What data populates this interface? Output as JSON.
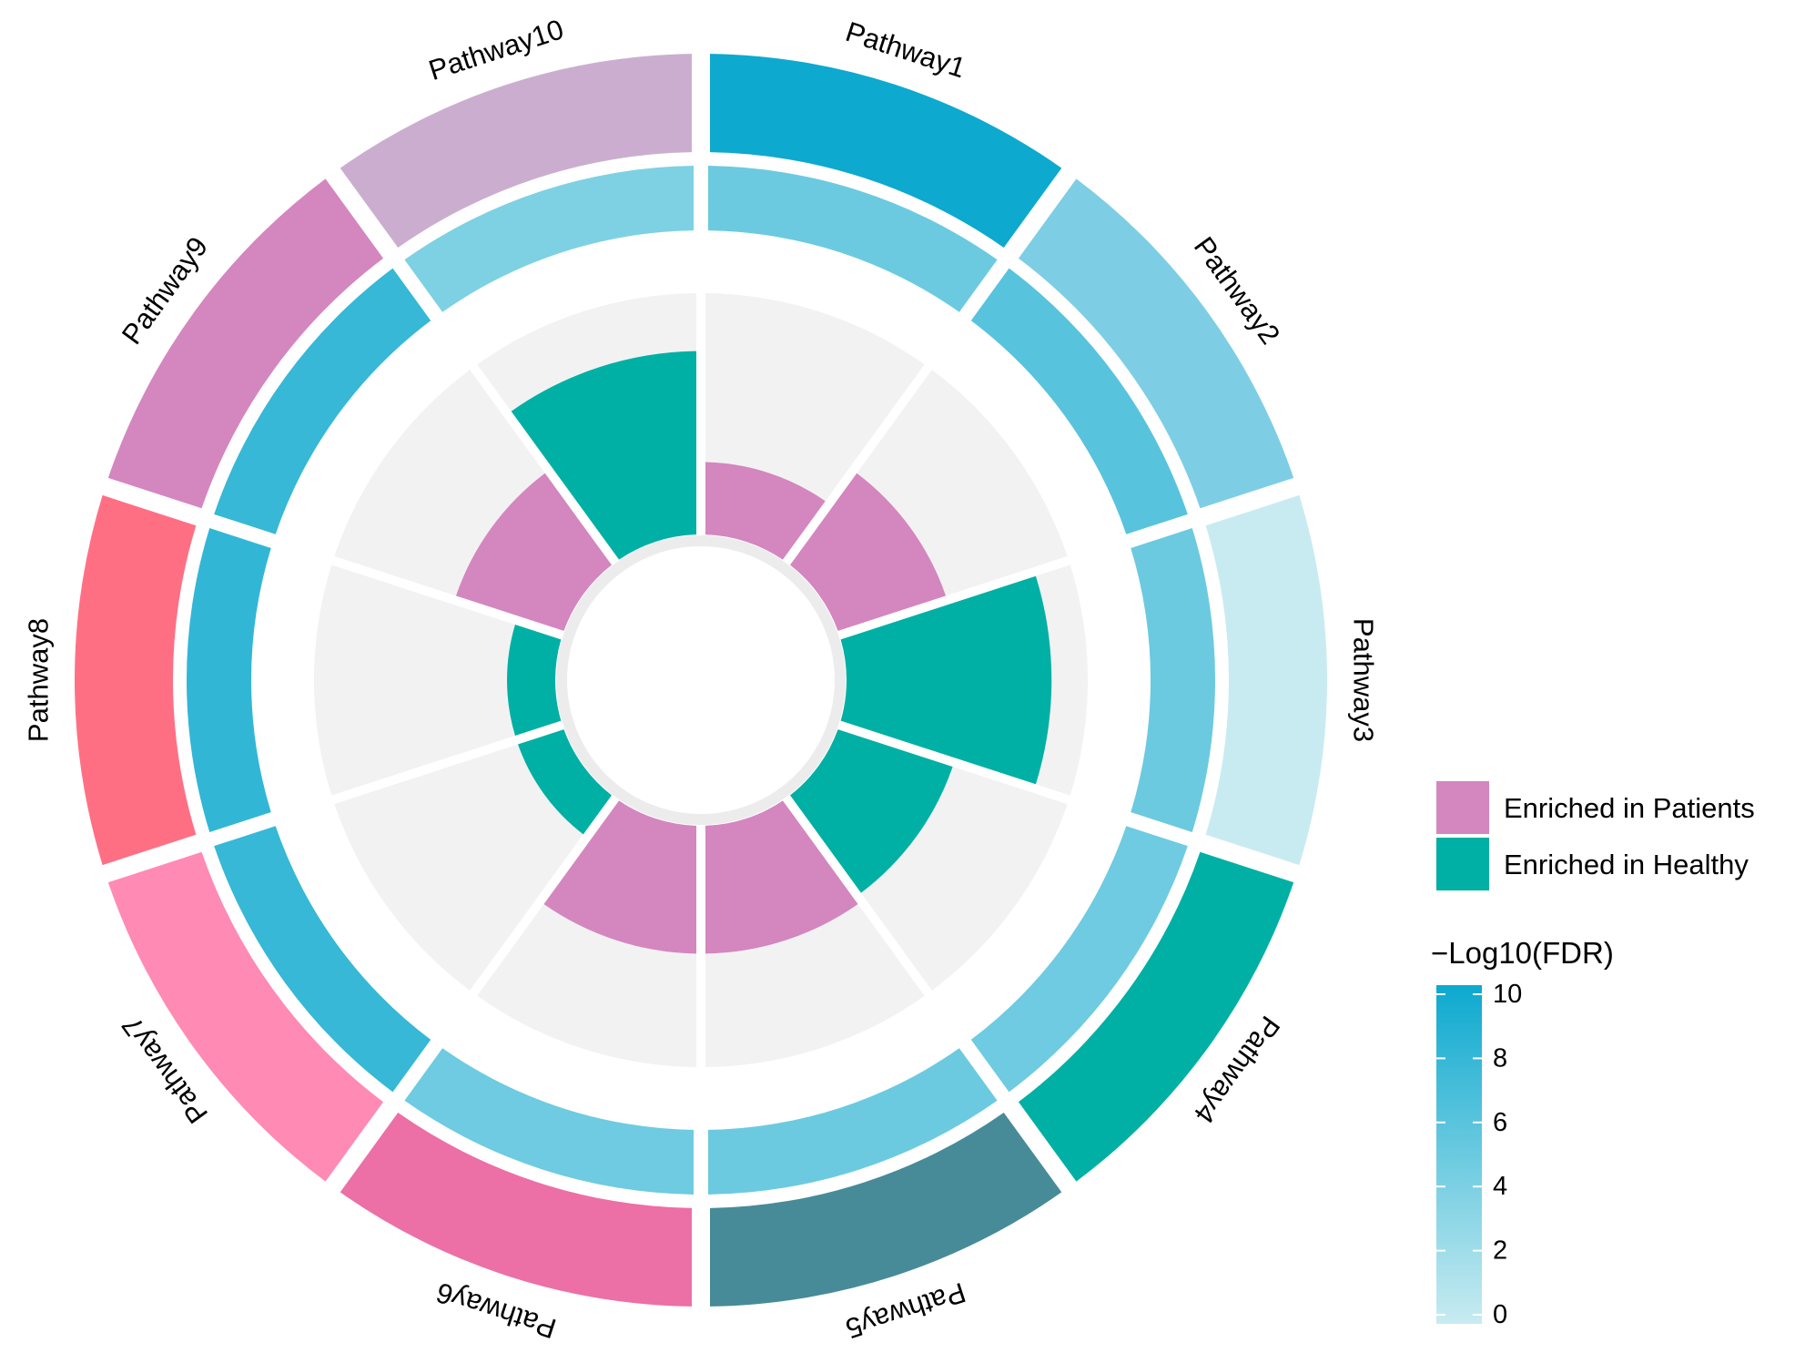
{
  "chart_data": {
    "type": "circular-bar",
    "pathways": [
      "Pathway1",
      "Pathway2",
      "Pathway3",
      "Pathway4",
      "Pathway5",
      "Pathway6",
      "Pathway7",
      "Pathway8",
      "Pathway9",
      "Pathway10"
    ],
    "outer_ring_colors": [
      "#0DA9CF",
      "#7DCEE5",
      "#C8EBF1",
      "#00B0A4",
      "#478B98",
      "#EC6FA6",
      "#FF8AB4",
      "#FF6F84",
      "#D486BF",
      "#CBAECF"
    ],
    "neg_log10_fdr": [
      5.0,
      6.0,
      5.0,
      4.8,
      5.0,
      4.8,
      7.8,
      8.0,
      7.8,
      4.0
    ],
    "enrichment_group": [
      "Patients",
      "Patients",
      "Healthy",
      "Healthy",
      "Patients",
      "Patients",
      "Healthy",
      "Healthy",
      "Patients",
      "Healthy"
    ],
    "bar_values": [
      0.3,
      0.47,
      0.85,
      0.5,
      0.53,
      0.53,
      0.2,
      0.2,
      0.47,
      0.76
    ],
    "bar_max": 1.0,
    "group_colors": {
      "Patients": "#D486BF",
      "Healthy": "#00B0A4"
    },
    "legend": {
      "items": [
        {
          "label": "Enriched in Patients",
          "color": "#D486BF"
        },
        {
          "label": "Enriched in Healthy",
          "color": "#00B0A4"
        }
      ],
      "colorbar_title": "−Log10(FDR)",
      "colorbar_ticks": [
        "10",
        "8",
        "6",
        "4",
        "2",
        "0"
      ],
      "colorbar_range": [
        0,
        10
      ],
      "colorbar_colors": [
        "#C8EBF1",
        "#0DA9CF"
      ],
      "position": "right"
    }
  }
}
